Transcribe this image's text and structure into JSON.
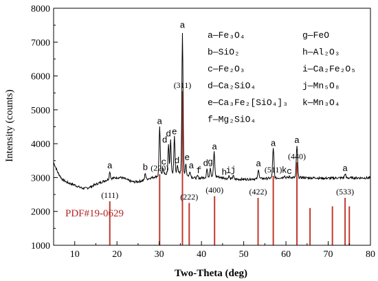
{
  "chart_data": {
    "type": "line",
    "xlabel": "Two-Theta (deg)",
    "ylabel": "Intensity (counts)",
    "xlim": [
      5,
      80
    ],
    "ylim": [
      1000,
      8000
    ],
    "x_ticks": [
      10,
      20,
      30,
      40,
      50,
      60,
      70,
      80
    ],
    "y_ticks": [
      1000,
      2000,
      3000,
      4000,
      5000,
      6000,
      7000,
      8000
    ],
    "pdf_label": "PDF#19-0629",
    "baseline": [
      [
        5,
        3450
      ],
      [
        6,
        3150
      ],
      [
        7,
        2950
      ],
      [
        8,
        2870
      ],
      [
        9,
        2820
      ],
      [
        10,
        2780
      ],
      [
        11,
        2720
      ],
      [
        12,
        2680
      ],
      [
        13,
        2690
      ],
      [
        14,
        2740
      ],
      [
        15,
        2800
      ],
      [
        16,
        2850
      ],
      [
        17,
        2900
      ],
      [
        18,
        2950
      ],
      [
        19,
        2980
      ],
      [
        20,
        3000
      ],
      [
        21,
        3000
      ],
      [
        22,
        2960
      ],
      [
        23,
        2900
      ],
      [
        24,
        2870
      ],
      [
        25,
        2880
      ],
      [
        26,
        2910
      ],
      [
        27,
        2950
      ],
      [
        28,
        2990
      ],
      [
        29,
        3020
      ],
      [
        30,
        3060
      ],
      [
        31,
        3100
      ],
      [
        32,
        3120
      ],
      [
        33,
        3150
      ],
      [
        34,
        3170
      ],
      [
        35,
        3150
      ],
      [
        36,
        3100
      ],
      [
        37,
        3050
      ],
      [
        38,
        3000
      ],
      [
        39,
        2980
      ],
      [
        40,
        2990
      ],
      [
        41,
        3010
      ],
      [
        42,
        3040
      ],
      [
        43,
        3050
      ],
      [
        44,
        3020
      ],
      [
        45,
        2990
      ],
      [
        46,
        2970
      ],
      [
        47,
        2960
      ],
      [
        48,
        2950
      ],
      [
        49,
        2950
      ],
      [
        50,
        2950
      ],
      [
        51,
        2950
      ],
      [
        52,
        2960
      ],
      [
        53,
        2960
      ],
      [
        54,
        2970
      ],
      [
        55,
        2970
      ],
      [
        56,
        2980
      ],
      [
        57,
        2980
      ],
      [
        58,
        2990
      ],
      [
        59,
        3000
      ],
      [
        60,
        3000
      ],
      [
        61,
        3000
      ],
      [
        62,
        3000
      ],
      [
        63,
        3000
      ],
      [
        64,
        3000
      ],
      [
        65,
        2990
      ],
      [
        66,
        2990
      ],
      [
        67,
        2990
      ],
      [
        68,
        2980
      ],
      [
        69,
        2980
      ],
      [
        70,
        2980
      ],
      [
        71,
        2980
      ],
      [
        72,
        2990
      ],
      [
        73,
        2990
      ],
      [
        74,
        2990
      ],
      [
        75,
        2990
      ],
      [
        76,
        2990
      ],
      [
        77,
        2990
      ],
      [
        78,
        2990
      ],
      [
        79,
        2990
      ],
      [
        80,
        2990
      ]
    ],
    "peaks": [
      [
        18.3,
        3190,
        0.25
      ],
      [
        26.7,
        3140,
        0.25
      ],
      [
        30.1,
        4500,
        0.28
      ],
      [
        30.9,
        3300,
        0.25
      ],
      [
        32.2,
        4000,
        0.25
      ],
      [
        32.7,
        4120,
        0.25
      ],
      [
        33.6,
        4230,
        0.25
      ],
      [
        34.3,
        3340,
        0.25
      ],
      [
        35.5,
        7280,
        0.28
      ],
      [
        36.3,
        3430,
        0.25
      ],
      [
        37.3,
        3190,
        0.25
      ],
      [
        39.1,
        3050,
        0.25
      ],
      [
        41.3,
        3260,
        0.25
      ],
      [
        42.1,
        3300,
        0.25
      ],
      [
        43.0,
        3750,
        0.28
      ],
      [
        45.3,
        3000,
        0.25
      ],
      [
        46.5,
        3050,
        0.25
      ],
      [
        47.5,
        3070,
        0.25
      ],
      [
        53.5,
        3250,
        0.28
      ],
      [
        57.0,
        3850,
        0.32
      ],
      [
        59.6,
        3060,
        0.25
      ],
      [
        60.9,
        3030,
        0.25
      ],
      [
        62.6,
        3940,
        0.3
      ],
      [
        67.3,
        3000,
        0.25
      ],
      [
        74.0,
        3110,
        0.28
      ]
    ],
    "series": [
      {
        "name": "",
        "color": "#000000"
      }
    ],
    "peak_markers": [
      {
        "x": 18.3,
        "y": 3190,
        "label": "a"
      },
      {
        "x": 26.7,
        "y": 3140,
        "label": "b"
      },
      {
        "x": 30.1,
        "y": 4500,
        "label": "a"
      },
      {
        "x": 31.1,
        "y": 3300,
        "label": "c"
      },
      {
        "x": 31.3,
        "y": 3950,
        "label": "d"
      },
      {
        "x": 32.2,
        "y": 4130,
        "label": "d"
      },
      {
        "x": 33.6,
        "y": 4200,
        "label": "e"
      },
      {
        "x": 34.2,
        "y": 3340,
        "label": "d"
      },
      {
        "x": 35.5,
        "y": 7340,
        "label": "a"
      },
      {
        "x": 36.6,
        "y": 3430,
        "label": "e"
      },
      {
        "x": 37.6,
        "y": 3190,
        "label": "a"
      },
      {
        "x": 39.4,
        "y": 3050,
        "label": "f"
      },
      {
        "x": 41.0,
        "y": 3260,
        "label": "d"
      },
      {
        "x": 42.1,
        "y": 3300,
        "label": "g"
      },
      {
        "x": 43.1,
        "y": 3750,
        "label": "a"
      },
      {
        "x": 45.4,
        "y": 3000,
        "label": "h"
      },
      {
        "x": 46.4,
        "y": 3050,
        "label": "i"
      },
      {
        "x": 47.5,
        "y": 3070,
        "label": "j"
      },
      {
        "x": 53.5,
        "y": 3250,
        "label": "a"
      },
      {
        "x": 57.0,
        "y": 3850,
        "label": "a"
      },
      {
        "x": 59.6,
        "y": 3060,
        "label": "k"
      },
      {
        "x": 60.8,
        "y": 3030,
        "label": "c"
      },
      {
        "x": 62.6,
        "y": 3940,
        "label": "a"
      },
      {
        "x": 74.0,
        "y": 3110,
        "label": "a"
      }
    ],
    "reference_lines": [
      {
        "x": 18.3,
        "height": 1300,
        "label": "(111)"
      },
      {
        "x": 30.1,
        "height": 2100,
        "label": "(220)"
      },
      {
        "x": 35.5,
        "height": 4550,
        "label": "(311)"
      },
      {
        "x": 37.1,
        "height": 1250,
        "label": "(222)"
      },
      {
        "x": 43.1,
        "height": 1450,
        "label": "(400)"
      },
      {
        "x": 53.4,
        "height": 1400,
        "label": "(422)"
      },
      {
        "x": 57.0,
        "height": 2050,
        "label": "(511)"
      },
      {
        "x": 62.6,
        "height": 2450,
        "label": "(440)"
      },
      {
        "x": 65.7,
        "height": 1100,
        "label": ""
      },
      {
        "x": 71.0,
        "height": 1150,
        "label": ""
      },
      {
        "x": 74.0,
        "height": 1400,
        "label": "(533)"
      },
      {
        "x": 75.0,
        "height": 1150,
        "label": ""
      }
    ],
    "legend": [
      {
        "key": "a",
        "formula": "—Fe₃O₄"
      },
      {
        "key": "b",
        "formula": "—SiO₂"
      },
      {
        "key": "c",
        "formula": "—Fe₂O₃"
      },
      {
        "key": "d",
        "formula": "—Ca₂SiO₄"
      },
      {
        "key": "e",
        "formula": "—Ca₃Fe₂[SiO₄]₃"
      },
      {
        "key": "f",
        "formula": "—Mg₂SiO₄"
      },
      {
        "key": "g",
        "formula": "—FeO"
      },
      {
        "key": "h",
        "formula": "—Al₂O₃"
      },
      {
        "key": "i",
        "formula": "—Ca₂Fe₂O₅"
      },
      {
        "key": "j",
        "formula": "—Mn₅O₈"
      },
      {
        "key": "k",
        "formula": "—Mn₃O₄"
      }
    ],
    "colors": {
      "pattern": "#000000",
      "reference": "#c0392b",
      "reference_label": "#b22222",
      "text": "#000000"
    }
  }
}
